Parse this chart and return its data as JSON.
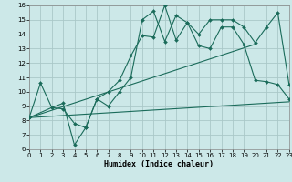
{
  "xlabel": "Humidex (Indice chaleur)",
  "bg_color": "#cce8e8",
  "grid_color": "#aac8c8",
  "line_color": "#1a6b5a",
  "xlim": [
    0,
    23
  ],
  "ylim": [
    6,
    16
  ],
  "xticks": [
    0,
    1,
    2,
    3,
    4,
    5,
    6,
    7,
    8,
    9,
    10,
    11,
    12,
    13,
    14,
    15,
    16,
    17,
    18,
    19,
    20,
    21,
    22,
    23
  ],
  "yticks": [
    6,
    7,
    8,
    9,
    10,
    11,
    12,
    13,
    14,
    15,
    16
  ],
  "line1_x": [
    0,
    1,
    2,
    3,
    4,
    5,
    6,
    7,
    8,
    9,
    10,
    11,
    12,
    13,
    14,
    15,
    16,
    17,
    18,
    19,
    20,
    21,
    22,
    23
  ],
  "line1_y": [
    8.2,
    10.6,
    8.9,
    8.8,
    7.8,
    7.5,
    9.5,
    10.0,
    10.8,
    12.5,
    13.9,
    13.8,
    16.0,
    13.6,
    14.8,
    13.2,
    13.0,
    14.5,
    14.5,
    13.3,
    10.8,
    10.7,
    10.5,
    9.5
  ],
  "line2_x": [
    0,
    2,
    3,
    4,
    5,
    6,
    7,
    8,
    9,
    10,
    11,
    12,
    13,
    14,
    15,
    16,
    17,
    18,
    19,
    20,
    21,
    22,
    23
  ],
  "line2_y": [
    8.2,
    8.9,
    9.2,
    6.3,
    7.5,
    9.5,
    9.0,
    10.0,
    11.0,
    15.0,
    15.6,
    13.5,
    15.3,
    14.8,
    14.0,
    15.0,
    15.0,
    15.0,
    14.5,
    13.4,
    14.5,
    15.5,
    10.5
  ],
  "line3_x": [
    0,
    20
  ],
  "line3_y": [
    8.2,
    13.3
  ],
  "line4_x": [
    0,
    23
  ],
  "line4_y": [
    8.2,
    9.3
  ]
}
